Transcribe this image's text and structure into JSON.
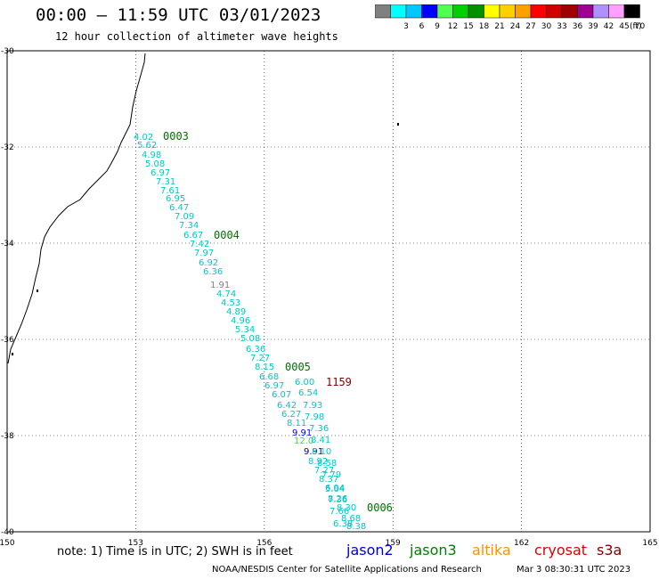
{
  "header": {
    "title": "00:00 – 11:59 UTC 03/01/2023",
    "subtitle": "12 hour collection of altimeter wave heights"
  },
  "legend": {
    "unit": "(ft)",
    "bins": [
      {
        "label": "",
        "color": "#808080"
      },
      {
        "label": "3",
        "color": "#00ffff"
      },
      {
        "label": "6",
        "color": "#00c8ff"
      },
      {
        "label": "9",
        "color": "#0000ff"
      },
      {
        "label": "12",
        "color": "#50ff50"
      },
      {
        "label": "15",
        "color": "#00d000"
      },
      {
        "label": "18",
        "color": "#009000"
      },
      {
        "label": "21",
        "color": "#ffff00"
      },
      {
        "label": "24",
        "color": "#ffd000"
      },
      {
        "label": "27",
        "color": "#ffa000"
      },
      {
        "label": "30",
        "color": "#ff0000"
      },
      {
        "label": "33",
        "color": "#d00000"
      },
      {
        "label": "36",
        "color": "#a00000"
      },
      {
        "label": "39",
        "color": "#a00090"
      },
      {
        "label": "42",
        "color": "#b090ff"
      },
      {
        "label": "45",
        "color": "#ffa0ff"
      },
      {
        "label": "70",
        "color": "#000000"
      }
    ]
  },
  "axes": {
    "lon_ticks": [
      "150",
      "153",
      "156",
      "159",
      "162",
      "165"
    ],
    "lat_ticks": [
      "-30",
      "-32",
      "-34",
      "-36",
      "-38",
      "-40"
    ]
  },
  "track_labels": [
    {
      "time": "0003",
      "color": "#007000"
    },
    {
      "time": "0004",
      "color": "#007000"
    },
    {
      "time": "0005",
      "color": "#007000"
    },
    {
      "time": "1159",
      "color": "#800000"
    },
    {
      "time": "0006",
      "color": "#007000"
    }
  ],
  "wave_heights": [
    {
      "value": "4.02",
      "color": "#00c8c8"
    },
    {
      "value": "5.62",
      "color": "#00c8c8"
    },
    {
      "value": "4.98",
      "color": "#00c8c8"
    },
    {
      "value": "5.08",
      "color": "#00c8c8"
    },
    {
      "value": "6.97",
      "color": "#00c8c8"
    },
    {
      "value": "7.31",
      "color": "#00c8c8"
    },
    {
      "value": "7.61",
      "color": "#00c8c8"
    },
    {
      "value": "6.95",
      "color": "#00c8c8"
    },
    {
      "value": "6.47",
      "color": "#00c8c8"
    },
    {
      "value": "7.09",
      "color": "#00c8c8"
    },
    {
      "value": "7.34",
      "color": "#00c8c8"
    },
    {
      "value": "6.67",
      "color": "#00c8c8"
    },
    {
      "value": "7.42",
      "color": "#00c8c8"
    },
    {
      "value": "7.97",
      "color": "#00c8c8"
    },
    {
      "value": "6.92",
      "color": "#00c8c8"
    },
    {
      "value": "6.36",
      "color": "#00c8c8"
    },
    {
      "value": "1.91",
      "color": "#808080"
    },
    {
      "value": "4.74",
      "color": "#00c8c8"
    },
    {
      "value": "4.53",
      "color": "#00c8c8"
    },
    {
      "value": "4.89",
      "color": "#00c8c8"
    },
    {
      "value": "4.96",
      "color": "#00c8c8"
    },
    {
      "value": "5.34",
      "color": "#00c8c8"
    },
    {
      "value": "5.08",
      "color": "#00c8c8"
    },
    {
      "value": "6.36",
      "color": "#00c8c8"
    },
    {
      "value": "7.27",
      "color": "#00c8c8"
    },
    {
      "value": "8.15",
      "color": "#00c8c8"
    },
    {
      "value": "6.68",
      "color": "#00c8c8"
    },
    {
      "value": "6.97",
      "color": "#00c8c8"
    },
    {
      "value": "6.07",
      "color": "#00c8c8"
    },
    {
      "value": "6.42",
      "color": "#00c8c8"
    },
    {
      "value": "6.27",
      "color": "#00c8c8"
    },
    {
      "value": "8.11",
      "color": "#00c8c8"
    },
    {
      "value": "9.91",
      "color": "#0000ff"
    },
    {
      "value": "12.0",
      "color": "#50d050"
    },
    {
      "value": "9.91",
      "color": "#000080"
    },
    {
      "value": "8.92",
      "color": "#00c8c8"
    },
    {
      "value": "7.27",
      "color": "#00c8c8"
    },
    {
      "value": "8.37",
      "color": "#00c8c8"
    },
    {
      "value": "5.04",
      "color": "#00c8c8"
    },
    {
      "value": "8.26",
      "color": "#00c8c8"
    },
    {
      "value": "7.66",
      "color": "#00c8c8"
    },
    {
      "value": "6.38",
      "color": "#00c8c8"
    },
    {
      "value": "6.00",
      "color": "#00c8c8"
    },
    {
      "value": "6.54",
      "color": "#00c8c8"
    },
    {
      "value": "7.93",
      "color": "#00c8c8"
    },
    {
      "value": "7.98",
      "color": "#00c8c8"
    },
    {
      "value": "7.36",
      "color": "#00c8c8"
    },
    {
      "value": "8.41",
      "color": "#00c8c8"
    },
    {
      "value": "8.10",
      "color": "#00c8c8"
    },
    {
      "value": "8.58",
      "color": "#00c8c8"
    },
    {
      "value": "7.79",
      "color": "#00c8c8"
    },
    {
      "value": "6.94",
      "color": "#00c8c8"
    },
    {
      "value": "7.36",
      "color": "#00c8c8"
    },
    {
      "value": "8.30",
      "color": "#00c8c8"
    },
    {
      "value": "8.68",
      "color": "#00c8c8"
    },
    {
      "value": "8.38",
      "color": "#00c8c8"
    }
  ],
  "footer": {
    "note": "note: 1) Time is in UTC; 2) SWH is in feet",
    "satellites": [
      {
        "name": "jason2",
        "color": "#0000d0"
      },
      {
        "name": "jason3",
        "color": "#008000"
      },
      {
        "name": "altika",
        "color": "#ff9000"
      },
      {
        "name": "cryosat",
        "color": "#e00000"
      },
      {
        "name": "s3a",
        "color": "#800000"
      }
    ],
    "credit": "NOAA/NESDIS Center for Satellite Applications and Research",
    "timestamp": "Mar  3 08:30:31 UTC 2023"
  }
}
